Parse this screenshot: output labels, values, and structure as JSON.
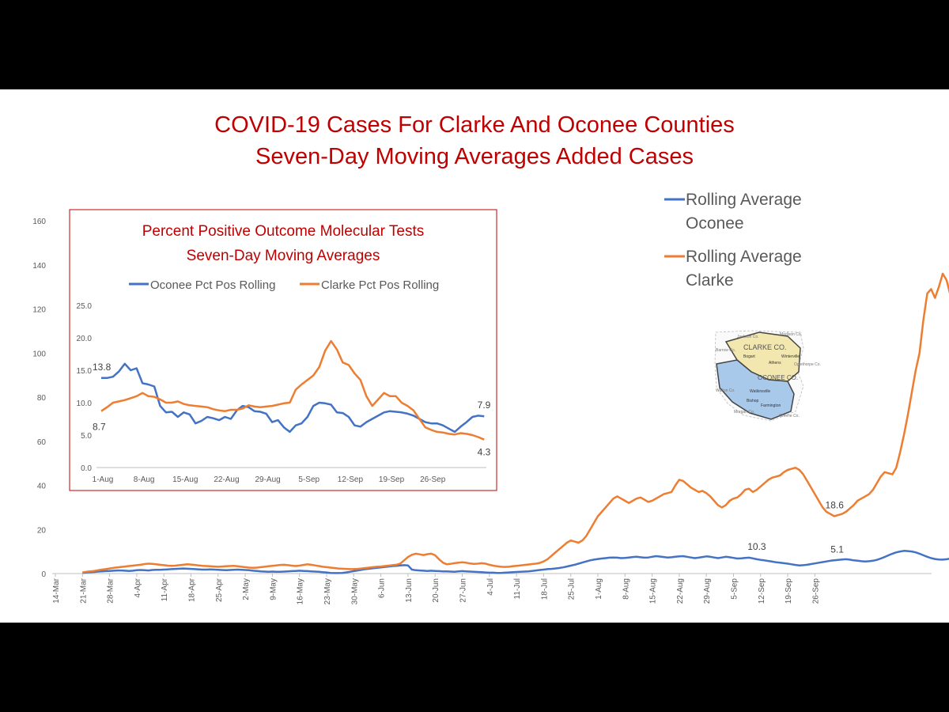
{
  "chart_data": [
    {
      "id": "main",
      "type": "line",
      "title": "COVID-19 Cases For Clarke And Oconee Counties",
      "subtitle": "Seven-Day Moving Averages Added Cases",
      "xlabel": "",
      "ylabel": "",
      "ylim": [
        0,
        160
      ],
      "yticks": [
        0,
        20,
        40,
        60,
        80,
        100,
        120,
        140,
        160
      ],
      "x_tick_labels": [
        "14-Mar",
        "21-Mar",
        "28-Mar",
        "4-Apr",
        "11-Apr",
        "18-Apr",
        "25-Apr",
        "2-May",
        "9-May",
        "16-May",
        "23-May",
        "30-May",
        "6-Jun",
        "13-Jun",
        "20-Jun",
        "27-Jun",
        "4-Jul",
        "11-Jul",
        "18-Jul",
        "25-Jul",
        "1-Aug",
        "8-Aug",
        "15-Aug",
        "22-Aug",
        "29-Aug",
        "5-Sep",
        "12-Sep",
        "19-Sep",
        "26-Sep"
      ],
      "x_start_label": "14-Mar",
      "grid": false,
      "legend": "top-right",
      "series": [
        {
          "name": "Rolling Average Oconee",
          "legend_lines": [
            "Rolling Average",
            "Oconee"
          ],
          "color": "#4472c4",
          "start_day": 7,
          "values": [
            0.3,
            0.5,
            0.6,
            0.7,
            0.9,
            1.0,
            1.1,
            1.2,
            1.3,
            1.4,
            1.4,
            1.3,
            1.2,
            1.3,
            1.5,
            1.6,
            1.5,
            1.4,
            1.6,
            1.7,
            1.7,
            1.8,
            1.9,
            2.0,
            2.1,
            2.2,
            2.3,
            2.2,
            2.1,
            2.0,
            1.9,
            1.8,
            1.8,
            1.9,
            1.8,
            1.7,
            1.6,
            1.5,
            1.6,
            1.7,
            1.8,
            1.7,
            1.6,
            1.5,
            1.3,
            1.2,
            1.0,
            0.9,
            0.8,
            0.9,
            0.8,
            0.8,
            0.9,
            1.0,
            1.1,
            1.2,
            1.3,
            1.2,
            1.1,
            1.0,
            0.9,
            0.8,
            0.6,
            0.5,
            0.3,
            0.2,
            0.2,
            0.3,
            0.5,
            0.8,
            1.1,
            1.4,
            1.7,
            2.0,
            2.2,
            2.4,
            2.6,
            2.8,
            3.0,
            3.2,
            3.4,
            3.5,
            3.7,
            3.8,
            3.7,
            1.8,
            1.5,
            1.4,
            1.3,
            1.2,
            1.3,
            1.2,
            1.1,
            1.0,
            1.0,
            0.9,
            0.8,
            1.0,
            1.1,
            1.0,
            0.9,
            0.8,
            0.7,
            0.6,
            0.5,
            0.4,
            0.4,
            0.3,
            0.3,
            0.4,
            0.5,
            0.6,
            0.7,
            0.8,
            0.9,
            1.0,
            1.2,
            1.4,
            1.6,
            1.8,
            2.0,
            2.1,
            2.3,
            2.5,
            2.8,
            3.2,
            3.6,
            4.0,
            4.5,
            5.0,
            5.5,
            6.0,
            6.3,
            6.6,
            6.8,
            7.0,
            7.2,
            7.3,
            7.2,
            7.0,
            7.1,
            7.3,
            7.5,
            7.6,
            7.4,
            7.2,
            7.3,
            7.6,
            7.9,
            7.7,
            7.5,
            7.3,
            7.4,
            7.6,
            7.8,
            7.9,
            7.6,
            7.3,
            7.0,
            7.2,
            7.5,
            7.8,
            7.6,
            7.3,
            7.0,
            7.3,
            7.6,
            7.4,
            7.1,
            6.8,
            6.9,
            7.1,
            7.2,
            6.9,
            6.5,
            6.2,
            6.0,
            5.7,
            5.4,
            5.1,
            4.9,
            4.7,
            4.5,
            4.2,
            3.9,
            3.7,
            3.8,
            4.0,
            4.3,
            4.6,
            4.9,
            5.2,
            5.5,
            5.8,
            6.0,
            6.2,
            6.4,
            6.5,
            6.3,
            6.0,
            5.8,
            5.6,
            5.5,
            5.6,
            5.8,
            6.2,
            6.8,
            7.5,
            8.3,
            9.0,
            9.6,
            10.0,
            10.3,
            10.2,
            10.0,
            9.6,
            9.0,
            8.3,
            7.6,
            7.0,
            6.6,
            6.4,
            6.3,
            6.5,
            6.8,
            7.1,
            7.3,
            7.4,
            7.2,
            6.9,
            6.6,
            6.2,
            5.8,
            5.3,
            4.8,
            4.5,
            4.3,
            4.2,
            4.1,
            4.2,
            4.4,
            4.5,
            4.6,
            4.8,
            5.0,
            5.1
          ]
        },
        {
          "name": "Rolling Average Clarke",
          "legend_lines": [
            "Rolling Average",
            "Clarke"
          ],
          "color": "#ed7d31",
          "start_day": 7,
          "values": [
            0.5,
            0.8,
            1.0,
            1.2,
            1.5,
            1.8,
            2.0,
            2.3,
            2.6,
            2.8,
            3.0,
            3.2,
            3.4,
            3.6,
            3.8,
            4.0,
            4.3,
            4.5,
            4.4,
            4.2,
            4.0,
            3.8,
            3.6,
            3.5,
            3.6,
            3.8,
            4.0,
            4.2,
            4.1,
            3.9,
            3.7,
            3.5,
            3.4,
            3.3,
            3.2,
            3.1,
            3.2,
            3.3,
            3.4,
            3.5,
            3.3,
            3.1,
            2.9,
            2.7,
            2.6,
            2.7,
            2.9,
            3.1,
            3.3,
            3.5,
            3.7,
            3.9,
            4.0,
            3.8,
            3.6,
            3.4,
            3.6,
            3.9,
            4.2,
            4.0,
            3.7,
            3.4,
            3.1,
            2.9,
            2.7,
            2.5,
            2.3,
            2.2,
            2.1,
            2.0,
            2.0,
            2.1,
            2.3,
            2.5,
            2.7,
            2.9,
            3.1,
            3.2,
            3.4,
            3.6,
            3.8,
            4.0,
            4.5,
            6.0,
            7.5,
            8.5,
            9.0,
            8.7,
            8.4,
            8.8,
            9.0,
            8.3,
            6.5,
            5.0,
            4.2,
            4.4,
            4.7,
            4.9,
            5.1,
            4.9,
            4.6,
            4.4,
            4.5,
            4.7,
            4.5,
            4.0,
            3.6,
            3.3,
            3.1,
            3.0,
            3.1,
            3.3,
            3.5,
            3.7,
            3.9,
            4.1,
            4.3,
            4.5,
            4.8,
            5.5,
            6.5,
            8.0,
            9.5,
            11.0,
            12.5,
            14.0,
            15.0,
            14.5,
            14.0,
            15.0,
            17.0,
            20.0,
            23.0,
            26.0,
            28.0,
            30.0,
            32.0,
            34.0,
            35.0,
            34.0,
            33.0,
            32.0,
            33.0,
            34.0,
            34.5,
            33.5,
            32.5,
            33.0,
            34.0,
            35.0,
            36.0,
            36.5,
            37.0,
            40.0,
            42.5,
            42.0,
            40.5,
            39.0,
            38.0,
            37.0,
            37.5,
            36.5,
            35.0,
            33.0,
            31.0,
            30.0,
            31.0,
            33.0,
            34.0,
            34.5,
            36.0,
            38.0,
            38.5,
            37.0,
            38.0,
            39.5,
            41.0,
            42.5,
            43.5,
            44.0,
            44.5,
            46.0,
            47.0,
            47.5,
            48.0,
            47.0,
            45.0,
            42.0,
            39.0,
            36.0,
            33.0,
            30.0,
            28.0,
            27.0,
            26.0,
            26.5,
            27.0,
            28.0,
            29.5,
            31.0,
            33.0,
            34.0,
            35.0,
            36.0,
            38.0,
            41.0,
            44.0,
            46.0,
            45.5,
            45.0,
            48.0,
            55.0,
            63.0,
            72.0,
            82.0,
            92.0,
            100.0,
            115.0,
            127.0,
            129.0,
            125.0,
            130.0,
            136.0,
            133.0,
            126.0,
            128.0,
            118.0,
            107.0,
            106.5,
            105.0,
            92.0,
            86.0,
            80.0,
            73.0,
            66.0,
            58.0,
            52.0,
            49.0,
            42.0,
            35.0,
            31.0,
            28.0,
            25.0,
            23.0,
            21.5,
            20.5,
            20.0,
            19.5,
            19.0,
            18.6
          ]
        }
      ],
      "annotations": [
        {
          "text": "10.3",
          "series": "Rolling Average Oconee",
          "day": 181
        },
        {
          "text": "5.1",
          "series": "Rolling Average Oconee",
          "day": 201
        },
        {
          "text": "18.6",
          "series": "Rolling Average Clarke",
          "day": 201
        }
      ]
    },
    {
      "id": "inset",
      "type": "line",
      "title": "Percent Positive Outcome Molecular Tests",
      "subtitle": "Seven-Day Moving Averages",
      "xlabel": "",
      "ylabel": "",
      "ylim": [
        0,
        25
      ],
      "yticks": [
        "0.0",
        "5.0",
        "10.0",
        "15.0",
        "20.0",
        "25.0"
      ],
      "x_tick_labels": [
        "1-Aug",
        "8-Aug",
        "15-Aug",
        "22-Aug",
        "29-Aug",
        "5-Sep",
        "12-Sep",
        "19-Sep",
        "26-Sep"
      ],
      "grid": false,
      "legend": "top",
      "series": [
        {
          "name": "Oconee Pct Pos Rolling",
          "color": "#4472c4",
          "values": [
            13.8,
            13.8,
            14.0,
            14.8,
            16.0,
            15.0,
            15.3,
            13.0,
            12.8,
            12.5,
            9.5,
            8.5,
            8.6,
            7.8,
            8.5,
            8.2,
            6.8,
            7.2,
            7.8,
            7.6,
            7.3,
            7.8,
            7.5,
            8.8,
            9.5,
            9.3,
            8.7,
            8.6,
            8.3,
            7.0,
            7.3,
            6.2,
            5.5,
            6.5,
            6.8,
            7.8,
            9.5,
            10.0,
            9.9,
            9.7,
            8.5,
            8.4,
            7.8,
            6.5,
            6.3,
            7.0,
            7.5,
            8.0,
            8.5,
            8.7,
            8.6,
            8.5,
            8.3,
            8.0,
            7.5,
            7.0,
            6.8,
            6.8,
            6.5,
            6.0,
            5.5,
            6.3,
            7.0,
            7.8,
            8.0,
            7.9
          ]
        },
        {
          "name": "Clarke Pct Pos Rolling",
          "color": "#ed7d31",
          "values": [
            8.7,
            9.3,
            10.0,
            10.2,
            10.4,
            10.7,
            11.0,
            11.5,
            11.0,
            10.9,
            10.5,
            10.0,
            10.0,
            10.2,
            9.8,
            9.6,
            9.5,
            9.4,
            9.3,
            9.0,
            8.8,
            8.7,
            8.9,
            8.9,
            9.1,
            9.6,
            9.4,
            9.3,
            9.4,
            9.5,
            9.7,
            9.9,
            10.0,
            12.0,
            12.8,
            13.5,
            14.2,
            15.5,
            18.0,
            19.5,
            18.2,
            16.2,
            15.8,
            14.5,
            13.5,
            11.0,
            9.5,
            10.5,
            11.5,
            11.0,
            11.0,
            10.0,
            9.5,
            8.8,
            7.5,
            6.2,
            5.8,
            5.5,
            5.4,
            5.2,
            5.1,
            5.3,
            5.2,
            5.0,
            4.7,
            4.3
          ]
        }
      ],
      "annotations": [
        {
          "text": "13.8",
          "series": "Oconee Pct Pos Rolling",
          "index": 0
        },
        {
          "text": "8.7",
          "series": "Clarke Pct Pos Rolling",
          "index": 0
        },
        {
          "text": "7.9",
          "series": "Oconee Pct Pos Rolling",
          "index": 65
        },
        {
          "text": "4.3",
          "series": "Clarke Pct Pos Rolling",
          "index": 65
        }
      ]
    }
  ],
  "map_inset": {
    "title": "CLARKE CO.",
    "county_label": "OCONEE CO.",
    "neighbor_labels": [
      "Jackson Co.",
      "Madison Co.",
      "Barrow Co.",
      "Oglethorpe Co.",
      "Walton Co.",
      "Morgan Co.",
      "Greene Co."
    ],
    "town_labels": [
      "Bogart",
      "Watkinsville",
      "Bishop",
      "Farmington",
      "Winterville",
      "Athens"
    ],
    "colors": {
      "clarke": "#f3e7b0",
      "oconee": "#a9c9ea",
      "outline": "#444444"
    }
  }
}
